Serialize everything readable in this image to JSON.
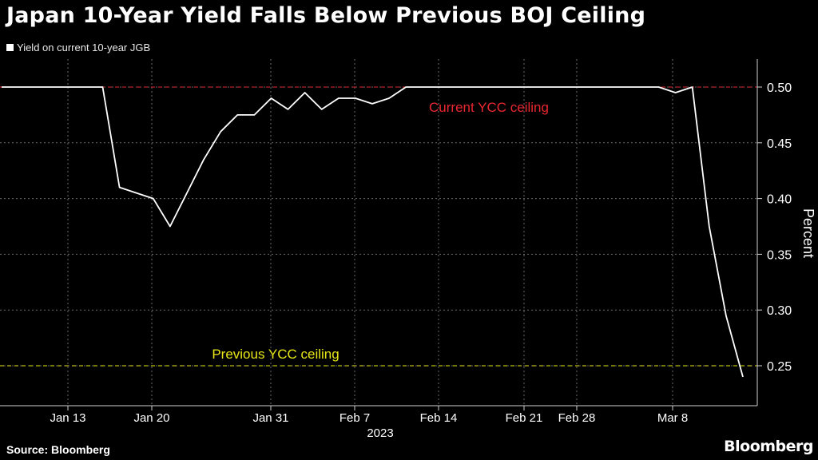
{
  "header": {
    "title": "Japan 10-Year Yield Falls Below Previous BOJ Ceiling"
  },
  "legend": {
    "label": "Yield on current 10-year JGB"
  },
  "footer": {
    "source": "Source: Bloomberg",
    "brand": "Bloomberg"
  },
  "chart_data": {
    "type": "line",
    "ylabel": "Percent",
    "xlabel": "",
    "ylim": [
      0.225,
      0.525
    ],
    "y_ticks": [
      0.25,
      0.3,
      0.35,
      0.4,
      0.45,
      0.5
    ],
    "y_tick_labels": [
      "0.25",
      "0.30",
      "0.35",
      "0.40",
      "0.45",
      "0.50"
    ],
    "x_tick_labels": [
      "Jan 13",
      "Jan 20",
      "Jan 31",
      "Feb 7",
      "Feb 14",
      "Feb 21",
      "Feb 28",
      "Mar 8"
    ],
    "year_label": "2023",
    "grid": true,
    "series": [
      {
        "name": "Yield on current 10-year JGB",
        "color": "#ffffff",
        "x": [
          "Jan 10",
          "Jan 11",
          "Jan 12",
          "Jan 13",
          "Jan 16",
          "Jan 17",
          "Jan 18",
          "Jan 19",
          "Jan 20",
          "Jan 23",
          "Jan 24",
          "Jan 25",
          "Jan 26",
          "Jan 27",
          "Jan 30",
          "Jan 31",
          "Feb 1",
          "Feb 2",
          "Feb 3",
          "Feb 6",
          "Feb 7",
          "Feb 8",
          "Feb 9",
          "Feb 10",
          "Feb 13",
          "Feb 14",
          "Feb 15",
          "Feb 16",
          "Feb 17",
          "Feb 20",
          "Feb 21",
          "Feb 22",
          "Feb 24",
          "Feb 27",
          "Feb 28",
          "Mar 1",
          "Mar 2",
          "Mar 3",
          "Mar 6",
          "Mar 7",
          "Mar 8",
          "Mar 9",
          "Mar 10",
          "Mar 13",
          "Mar 14"
        ],
        "values": [
          0.5,
          0.5,
          0.5,
          0.5,
          0.5,
          0.5,
          0.5,
          0.41,
          0.405,
          0.4,
          0.375,
          0.405,
          0.435,
          0.46,
          0.475,
          0.475,
          0.49,
          0.48,
          0.495,
          0.48,
          0.49,
          0.49,
          0.485,
          0.49,
          0.5,
          0.5,
          0.5,
          0.5,
          0.5,
          0.5,
          0.5,
          0.5,
          0.5,
          0.5,
          0.5,
          0.5,
          0.5,
          0.5,
          0.5,
          0.5,
          0.495,
          0.5,
          0.375,
          0.295,
          0.24
        ]
      }
    ],
    "reference_lines": [
      {
        "label": "Current YCC ceiling",
        "value": 0.5,
        "color": "#e8272f"
      },
      {
        "label": "Previous YCC ceiling",
        "value": 0.25,
        "color": "#e6e619"
      }
    ],
    "colors": {
      "background": "#000000",
      "line": "#ffffff",
      "grid": "#6a6a6a"
    }
  }
}
